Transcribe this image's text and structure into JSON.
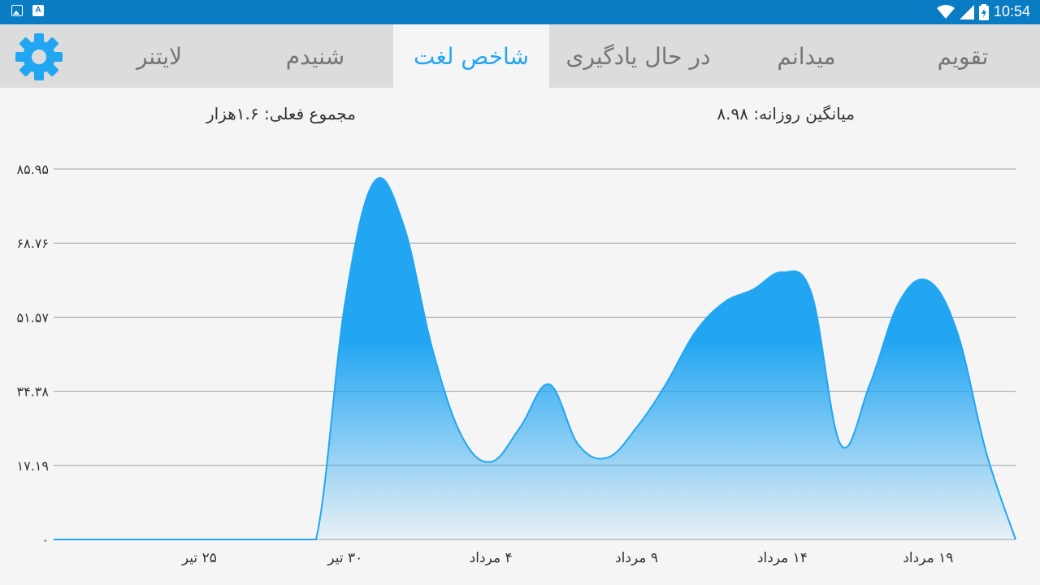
{
  "status_bar": {
    "time": "10:54",
    "left_icons": [
      "image-icon",
      "text-a-icon"
    ],
    "right_icons": [
      "wifi-icon",
      "signal-icon",
      "battery-charging-icon"
    ]
  },
  "tabs": [
    {
      "label": "تقویم",
      "active": false
    },
    {
      "label": "میدانم",
      "active": false
    },
    {
      "label": "در حال یادگیری",
      "active": false
    },
    {
      "label": "شاخص لغت",
      "active": true
    },
    {
      "label": "شنیدم",
      "active": false
    },
    {
      "label": "لایتنر",
      "active": false
    }
  ],
  "settings_icon": "gear-icon",
  "accent_color": "#22a6f2",
  "stats": {
    "total": "مجموع فعلی: ۱.۶هزار",
    "daily_average": "میانگین روزانه: ۸.۹۸"
  },
  "chart_data": {
    "type": "area",
    "title": "",
    "xlabel": "",
    "ylabel": "",
    "ylim": [
      0,
      85.95
    ],
    "y_tick_values": [
      0,
      17.19,
      34.38,
      51.57,
      68.76,
      85.95
    ],
    "y_tick_labels": [
      "۰",
      "۱۷.۱۹",
      "۳۴.۳۸",
      "۵۱.۵۷",
      "۶۸.۷۶",
      "۸۵.۹۵"
    ],
    "x_tick_labels": [
      "۲۵ تیر",
      "۳۰ تیر",
      "۴ مرداد",
      "۹ مرداد",
      "۱۴ مرداد",
      "۱۹ مرداد"
    ],
    "x_tick_values": [
      5,
      10,
      15,
      20,
      25,
      30
    ],
    "x_range": [
      0,
      33
    ],
    "grid": true,
    "series_color": "#22a6f2",
    "series": [
      {
        "x": [
          0,
          1,
          2,
          3,
          4,
          5,
          6,
          7,
          8,
          9,
          10,
          11,
          12,
          13,
          14,
          15,
          16,
          17,
          18,
          19,
          20,
          21,
          22,
          23,
          24,
          25,
          26,
          27,
          28,
          29,
          30,
          31,
          32,
          33
        ],
        "values": [
          0,
          0,
          0,
          0,
          0,
          0,
          0,
          0,
          0,
          0,
          55,
          83,
          73,
          44,
          24,
          18,
          26,
          36,
          22,
          19,
          26,
          36,
          48,
          55,
          58,
          62,
          57,
          22,
          36,
          55,
          60,
          48,
          20,
          0
        ]
      }
    ]
  }
}
